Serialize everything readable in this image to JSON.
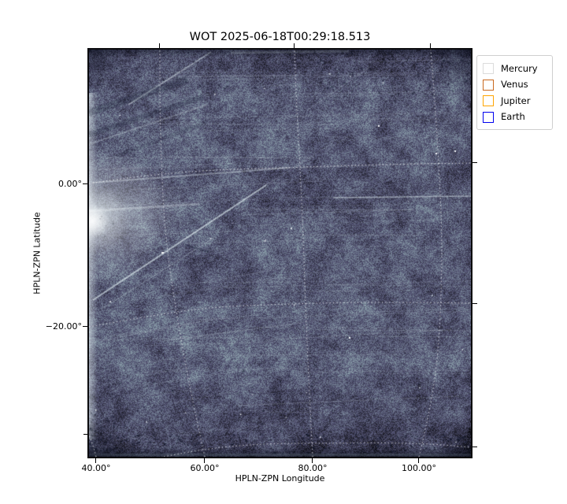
{
  "figure": {
    "title": "WOT 2025-06-18T00:29:18.513",
    "xlabel": "HPLN-ZPN Longitude",
    "ylabel": "HPLN-ZPN Latitude",
    "x_tick_labels": [
      "40.00°",
      "60.00°",
      "80.00°",
      "100.00°"
    ],
    "y_tick_labels": [
      "0.00°",
      "−20.00°"
    ],
    "legend": {
      "items": [
        {
          "label": "Mercury",
          "color": "#dcdcdc"
        },
        {
          "label": "Venus",
          "color": "#c9691f"
        },
        {
          "label": "Jupiter",
          "color": "#ffa500"
        },
        {
          "label": "Earth",
          "color": "#0000ee"
        }
      ]
    }
  },
  "chart_data": {
    "type": "heatmap",
    "title": "WOT 2025-06-18T00:29:18.513",
    "xlabel": "HPLN-ZPN Longitude",
    "ylabel": "HPLN-ZPN Latitude",
    "x_tick_labels": [
      "40.00°",
      "60.00°",
      "80.00°",
      "100.00°"
    ],
    "y_tick_labels": [
      "0.00°",
      "−20.00°"
    ],
    "x_ticks_deg": [
      40,
      60,
      80,
      100
    ],
    "y_ticks_deg": [
      0,
      -20
    ],
    "x_range_deg_approx": [
      38.5,
      110
    ],
    "y_range_deg_approx": [
      -38.5,
      19
    ],
    "colormap": "bone (dark slate blue-gray to white)",
    "grid": {
      "style": "dotted white curved graticule (ZPN sky projection, lines bow outward)",
      "longitude_lines_deg": [
        40,
        60,
        80,
        100
      ],
      "latitude_lines_deg": [
        0,
        -20,
        -40
      ]
    },
    "legend_position": "outside axes, upper right",
    "legend": [
      {
        "label": "Mercury",
        "marker": "open-square",
        "color": "#dcdcdc"
      },
      {
        "label": "Venus",
        "marker": "open-square",
        "color": "#c9691f"
      },
      {
        "label": "Jupiter",
        "marker": "open-square",
        "color": "#ffa500"
      },
      {
        "label": "Earth",
        "marker": "open-square",
        "color": "#0000ee"
      }
    ],
    "image_features": [
      "noisy detector frame rendered in bone colormap",
      "many thin nearly-horizontal light star/dust streaks across the frame",
      "bright diagonal dust-trail streak rising from lower-left toward center",
      "second bright diagonal streak in upper-left corner",
      "bright diffuse blob on the left edge near 0° latitude",
      "dark mottled bands along the top and bottom edges",
      "bright narrow column along the left detector edge"
    ]
  }
}
